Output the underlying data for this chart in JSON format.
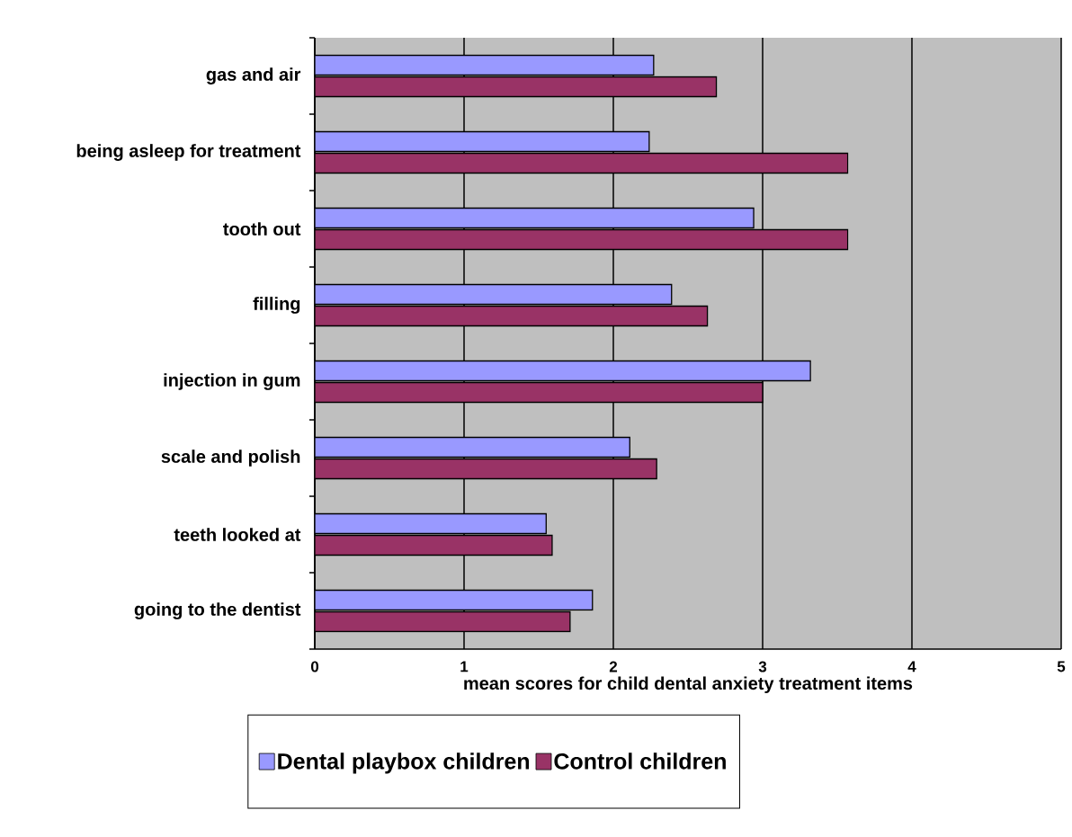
{
  "chart_data": {
    "type": "bar",
    "orientation": "horizontal",
    "xlabel": "mean scores for child dental anxiety treatment items",
    "categories": [
      "gas and air",
      "being asleep for treatment",
      "tooth out",
      "filling",
      "injection in gum",
      "scale and polish",
      "teeth looked at",
      "going to the dentist"
    ],
    "series": [
      {
        "name": "Dental playbox children",
        "color": "#9999ff",
        "values": [
          2.27,
          2.24,
          2.94,
          2.39,
          3.32,
          2.11,
          1.55,
          1.86
        ]
      },
      {
        "name": "Control children",
        "color": "#993366",
        "values": [
          2.69,
          3.57,
          3.57,
          2.63,
          3.0,
          2.29,
          1.59,
          1.71
        ]
      }
    ],
    "xlim": [
      0,
      5
    ],
    "xticks": [
      0,
      1,
      2,
      3,
      4,
      5
    ],
    "grid": "x",
    "legend": "bottom"
  }
}
